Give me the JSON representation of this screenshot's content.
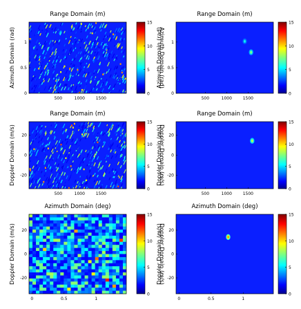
{
  "figure": {
    "panels": [
      {
        "id": "p11",
        "title": "Range Domain (m)",
        "ylabel": "Azimuth Domain (rad)",
        "ylabel_mirrored": "Azimuth Domain (rad)",
        "xticks": [
          "500",
          "1000",
          "1500"
        ],
        "yticks": [
          "0",
          "0.5",
          "1"
        ],
        "cbar_ticks": [
          "15",
          "10",
          "5",
          "0"
        ],
        "style": "noise"
      },
      {
        "id": "p12",
        "title": "Range Domain (m)",
        "ylabel": "Azimuth Domain (rad)",
        "ylabel_mirrored": "",
        "xticks": [
          "500",
          "1000",
          "1500"
        ],
        "yticks": [
          "0",
          "0.5",
          "1"
        ],
        "cbar_ticks": [
          "15",
          "10",
          "5",
          "0"
        ],
        "style": "clean"
      },
      {
        "id": "p21",
        "title": "Range Domain (m)",
        "ylabel": "Doppler Domain (m/s)",
        "ylabel_mirrored": "Doppler Domain (m/s)",
        "xticks": [
          "500",
          "1000",
          "1500"
        ],
        "yticks": [
          "-20",
          "0",
          "20"
        ],
        "cbar_ticks": [
          "15",
          "10",
          "5",
          "0"
        ],
        "style": "noise"
      },
      {
        "id": "p22",
        "title": "Range Domain (m)",
        "ylabel": "Doppler Domain (m/s)",
        "ylabel_mirrored": "",
        "xticks": [
          "500",
          "1000",
          "1500"
        ],
        "yticks": [
          "-20",
          "0",
          "20"
        ],
        "cbar_ticks": [
          "15",
          "10",
          "5",
          "0"
        ],
        "style": "clean"
      },
      {
        "id": "p31",
        "title": "Azimuth Domain (deg)",
        "ylabel": "Doppler Domain (m/s)",
        "ylabel_mirrored": "Doppler Domain (m/s)",
        "xticks": [
          "0",
          "0.5",
          "1"
        ],
        "yticks": [
          "-20",
          "0",
          "20"
        ],
        "cbar_ticks": [
          "15",
          "10",
          "5",
          "0"
        ],
        "style": "blocky"
      },
      {
        "id": "p32",
        "title": "Azimuth Domain (deg)",
        "ylabel": "Doppler Domain (m/s)",
        "ylabel_mirrored": "",
        "xticks": [
          "0",
          "0.5",
          "1"
        ],
        "yticks": [
          "-20",
          "0",
          "20"
        ],
        "cbar_ticks": [
          "15",
          "10",
          "5",
          "0"
        ],
        "style": "clean"
      }
    ]
  },
  "chart_data": [
    {
      "type": "heatmap",
      "title": "Range Domain (m)",
      "xlabel": "",
      "ylabel": "Azimuth Domain (rad)",
      "xlim": [
        200,
        1900
      ],
      "ylim": [
        0,
        1.3
      ],
      "clim": [
        0,
        15
      ],
      "colormap": "jet",
      "description_values": {
        "background_level": 2,
        "peaks": []
      }
    },
    {
      "type": "heatmap",
      "title": "Range Domain (m)",
      "xlabel": "",
      "ylabel": "Azimuth Domain (rad)",
      "xlim": [
        200,
        1900
      ],
      "ylim": [
        0,
        1.3
      ],
      "clim": [
        0,
        15
      ],
      "colormap": "jet",
      "peaks": [
        {
          "x": 1400,
          "y": 0.95,
          "value": 6
        },
        {
          "x": 1510,
          "y": 0.75,
          "value": 8
        }
      ]
    },
    {
      "type": "heatmap",
      "title": "Range Domain (m)",
      "xlabel": "",
      "ylabel": "Doppler Domain (m/s)",
      "xlim": [
        200,
        1900
      ],
      "ylim": [
        -35,
        35
      ],
      "clim": [
        0,
        15
      ],
      "colormap": "jet",
      "peaks": []
    },
    {
      "type": "heatmap",
      "title": "Range Domain (m)",
      "xlabel": "",
      "ylabel": "Doppler Domain (m/s)",
      "xlim": [
        200,
        1900
      ],
      "ylim": [
        -35,
        35
      ],
      "clim": [
        0,
        15
      ],
      "colormap": "jet",
      "peaks": [
        {
          "x": 1530,
          "y": 15,
          "value": 9
        }
      ]
    },
    {
      "type": "heatmap",
      "title": "Azimuth Domain (deg)",
      "xlabel": "",
      "ylabel": "Doppler Domain (m/s)",
      "xlim": [
        0,
        1.4
      ],
      "ylim": [
        -35,
        35
      ],
      "clim": [
        0,
        15
      ],
      "colormap": "jet",
      "peaks": []
    },
    {
      "type": "heatmap",
      "title": "Azimuth Domain (deg)",
      "xlabel": "",
      "ylabel": "Doppler Domain (m/s)",
      "xlim": [
        0,
        1.4
      ],
      "ylim": [
        -35,
        35
      ],
      "clim": [
        0,
        15
      ],
      "colormap": "jet",
      "peaks": [
        {
          "x": 0.75,
          "y": 15,
          "value": 12
        }
      ]
    }
  ]
}
